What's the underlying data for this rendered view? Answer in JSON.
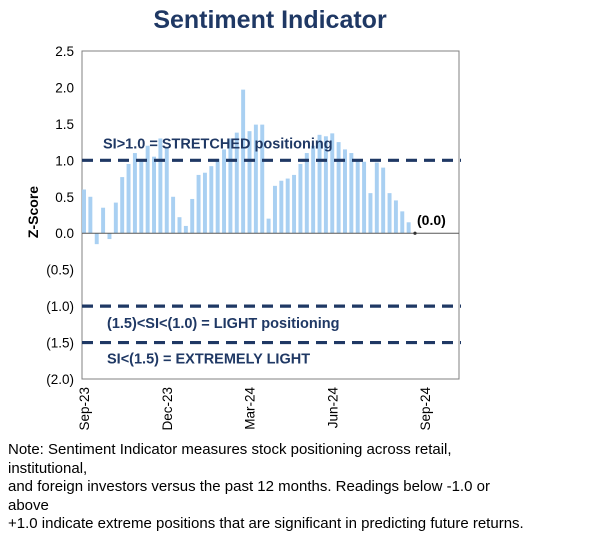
{
  "chart_data": {
    "type": "bar",
    "title": "Sentiment Indicator",
    "ylabel": "Z-Score",
    "ylim": [
      -2.0,
      2.5
    ],
    "yticks": [
      "2.5",
      "2.0",
      "1.5",
      "1.0",
      "0.5",
      "0.0",
      "(0.5)",
      "(1.0)",
      "(1.5)",
      "(2.0)"
    ],
    "xtick_labels": [
      "Sep-23",
      "Dec-23",
      "Mar-24",
      "Jun-24",
      "Sep-24"
    ],
    "bar_color": "#a9d0f2",
    "threshold_color": "#1f3864",
    "values": [
      0.6,
      0.5,
      -0.15,
      0.35,
      -0.08,
      0.42,
      0.77,
      0.95,
      1.1,
      1.0,
      1.2,
      1.05,
      1.3,
      1.18,
      0.5,
      0.22,
      0.1,
      0.47,
      0.8,
      0.83,
      0.92,
      1.02,
      1.15,
      1.3,
      1.38,
      1.97,
      1.4,
      1.49,
      1.49,
      0.2,
      0.65,
      0.72,
      0.75,
      0.8,
      0.95,
      1.1,
      1.2,
      1.35,
      1.33,
      1.37,
      1.25,
      1.15,
      1.1,
      1.0,
      0.98,
      0.55,
      0.97,
      0.9,
      0.55,
      0.45,
      0.3,
      0.15,
      0.0
    ],
    "thresholds": [
      {
        "value": 1.0,
        "label": "SI>1.0 = STRETCHED positioning"
      },
      {
        "value": -1.0,
        "label": "(1.5)<SI<(1.0) = LIGHT positioning"
      },
      {
        "value": -1.5,
        "label": "SI<(1.5) = EXTREMELY LIGHT"
      }
    ],
    "last_value_label": "(0.0)",
    "grid": false
  },
  "note": {
    "lines": [
      "Note: Sentiment Indicator measures stock positioning across retail,",
      "institutional,",
      "and foreign investors versus the past 12 months. Readings below -1.0 or",
      "above",
      "+1.0 indicate extreme positions that are significant in predicting future returns."
    ]
  }
}
